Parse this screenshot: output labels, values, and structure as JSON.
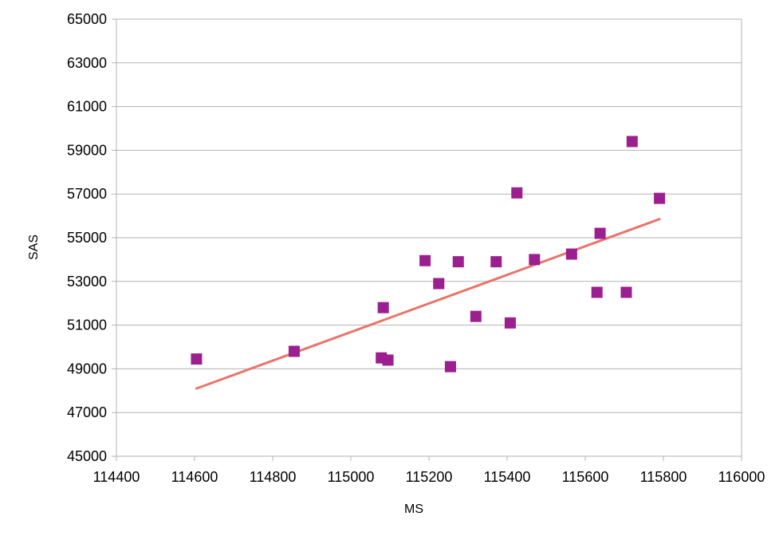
{
  "chart_data": {
    "type": "scatter",
    "title": "",
    "xlabel": "MS",
    "ylabel": "SAS",
    "xlim": [
      114400,
      116000
    ],
    "ylim": [
      45000,
      65000
    ],
    "x_ticks": [
      "114400",
      "114600",
      "114800",
      "115000",
      "115200",
      "115400",
      "115600",
      "115800",
      "116000"
    ],
    "y_ticks": [
      "45000",
      "47000",
      "49000",
      "51000",
      "53000",
      "55000",
      "57000",
      "59000",
      "61000",
      "63000",
      "65000"
    ],
    "grid": "horizontal",
    "legend": "none",
    "marker": "square",
    "series": [
      {
        "points": [
          {
            "x": 114605,
            "y": 49450
          },
          {
            "x": 114855,
            "y": 49800
          },
          {
            "x": 115078,
            "y": 49500
          },
          {
            "x": 115083,
            "y": 51800
          },
          {
            "x": 115095,
            "y": 49400
          },
          {
            "x": 115190,
            "y": 53950
          },
          {
            "x": 115225,
            "y": 52900
          },
          {
            "x": 115255,
            "y": 49100
          },
          {
            "x": 115275,
            "y": 53900
          },
          {
            "x": 115320,
            "y": 51400
          },
          {
            "x": 115372,
            "y": 53900
          },
          {
            "x": 115408,
            "y": 51100
          },
          {
            "x": 115425,
            "y": 57050
          },
          {
            "x": 115470,
            "y": 54000
          },
          {
            "x": 115565,
            "y": 54250
          },
          {
            "x": 115630,
            "y": 52500
          },
          {
            "x": 115638,
            "y": 55200
          },
          {
            "x": 115705,
            "y": 52500
          },
          {
            "x": 115720,
            "y": 59400
          },
          {
            "x": 115790,
            "y": 56800
          }
        ]
      }
    ],
    "trendline": {
      "type": "linear",
      "x": [
        114605,
        115790
      ],
      "y": [
        48100,
        55850
      ]
    }
  },
  "colors": {
    "marker": "#9c1f8f",
    "trendline": "#e8756a",
    "grid": "#b3b3b3",
    "axis": "#b3b3b3"
  }
}
